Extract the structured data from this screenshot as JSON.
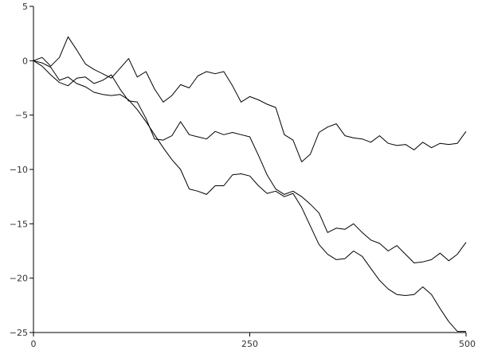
{
  "chart_data": {
    "type": "line",
    "title": "",
    "xlabel": "",
    "ylabel": "",
    "xlim": [
      0,
      500
    ],
    "ylim": [
      -25,
      5
    ],
    "xticks": [
      0,
      250,
      500
    ],
    "yticks": [
      5,
      0,
      -5,
      -10,
      -15,
      -20,
      -25
    ],
    "xtick_labels": [
      "0",
      "250",
      "500"
    ],
    "ytick_labels": [
      "5",
      "0",
      "−5",
      "−10",
      "−15",
      "−20",
      "−25"
    ],
    "grid": false,
    "legend": "none",
    "line_color": "#000000",
    "series": [
      {
        "x": [
          0,
          10,
          20,
          30,
          40,
          50,
          60,
          70,
          80,
          90,
          100,
          110,
          120,
          130,
          140,
          150,
          160,
          170,
          180,
          190,
          200,
          210,
          220,
          230,
          240,
          250,
          260,
          270,
          280,
          290,
          300,
          310,
          320,
          330,
          340,
          350,
          360,
          370,
          380,
          390,
          400,
          410,
          420,
          430,
          440,
          450,
          460,
          470,
          480,
          490,
          500
        ],
        "values": [
          0,
          0.3,
          -0.5,
          0.3,
          2.2,
          1.0,
          -0.3,
          -0.8,
          -1.2,
          -1.6,
          -0.7,
          0.2,
          -1.5,
          -1.0,
          -2.6,
          -3.8,
          -3.2,
          -2.2,
          -2.5,
          -1.4,
          -1.0,
          -1.2,
          -1.0,
          -2.3,
          -3.8,
          -3.3,
          -3.6,
          -4.0,
          -4.3,
          -6.8,
          -7.3,
          -9.3,
          -8.6,
          -6.6,
          -6.1,
          -5.8,
          -6.9,
          -7.1,
          -7.2,
          -7.5,
          -6.9,
          -7.6,
          -7.8,
          -7.7,
          -8.2,
          -7.5,
          -8.0,
          -7.6,
          -7.7,
          -7.6,
          -6.5
        ]
      },
      {
        "x": [
          0,
          10,
          20,
          30,
          40,
          50,
          60,
          70,
          80,
          90,
          100,
          110,
          120,
          130,
          140,
          150,
          160,
          170,
          180,
          190,
          200,
          210,
          220,
          230,
          240,
          250,
          260,
          270,
          280,
          290,
          300,
          310,
          320,
          330,
          340,
          350,
          360,
          370,
          380,
          390,
          400,
          410,
          420,
          430,
          440,
          450,
          460,
          470,
          480,
          490,
          500
        ],
        "values": [
          0,
          -0.5,
          -1.3,
          -2.0,
          -2.3,
          -1.6,
          -1.5,
          -2.1,
          -1.8,
          -1.3,
          -2.6,
          -3.7,
          -3.8,
          -5.3,
          -7.2,
          -7.3,
          -6.9,
          -5.6,
          -6.8,
          -7.0,
          -7.2,
          -6.5,
          -6.8,
          -6.6,
          -6.8,
          -7.0,
          -8.7,
          -10.5,
          -11.8,
          -12.3,
          -12.0,
          -12.5,
          -13.2,
          -14.0,
          -15.8,
          -15.4,
          -15.5,
          -15.0,
          -15.8,
          -16.5,
          -16.8,
          -17.5,
          -17.0,
          -17.8,
          -18.6,
          -18.5,
          -18.3,
          -17.7,
          -18.4,
          -17.8,
          -16.7
        ]
      },
      {
        "x": [
          0,
          10,
          20,
          30,
          40,
          50,
          60,
          70,
          80,
          90,
          100,
          110,
          120,
          130,
          140,
          150,
          160,
          170,
          180,
          190,
          200,
          210,
          220,
          230,
          240,
          250,
          260,
          270,
          280,
          290,
          300,
          310,
          320,
          330,
          340,
          350,
          360,
          370,
          380,
          390,
          400,
          410,
          420,
          430,
          440,
          450,
          460,
          470,
          480,
          490,
          500
        ],
        "values": [
          0,
          -0.2,
          -0.6,
          -1.8,
          -1.5,
          -2.1,
          -2.4,
          -2.9,
          -3.1,
          -3.2,
          -3.1,
          -3.6,
          -4.5,
          -5.6,
          -6.8,
          -8.0,
          -9.1,
          -10.0,
          -11.8,
          -12.0,
          -12.3,
          -11.5,
          -11.5,
          -10.5,
          -10.4,
          -10.6,
          -11.5,
          -12.2,
          -12.0,
          -12.5,
          -12.2,
          -13.5,
          -15.2,
          -16.9,
          -17.8,
          -18.3,
          -18.2,
          -17.5,
          -18.0,
          -19.1,
          -20.2,
          -21.0,
          -21.5,
          -21.6,
          -21.5,
          -20.8,
          -21.5,
          -22.8,
          -24.0,
          -24.9,
          -24.9
        ]
      }
    ]
  }
}
